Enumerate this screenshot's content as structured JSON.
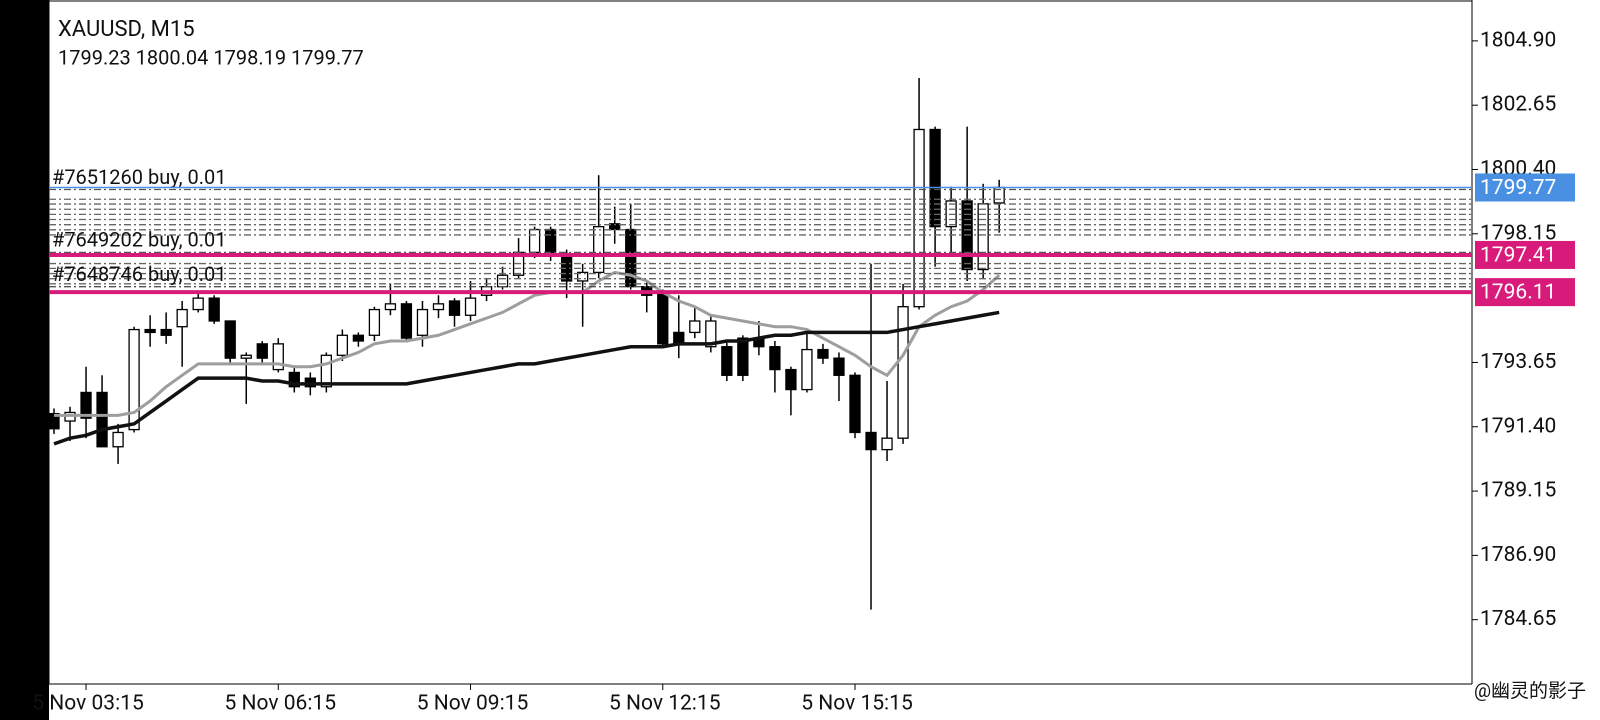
{
  "chart_data": {
    "type": "candlestick",
    "title": "XAUUSD, M15",
    "subtitle": "1799.23 1800.04 1798.19 1799.77",
    "categories": [
      null,
      null,
      "5 Nov 03:15",
      null,
      null,
      null,
      null,
      null,
      null,
      null,
      null,
      null,
      null,
      null,
      "5 Nov 06:15",
      null,
      null,
      null,
      null,
      null,
      null,
      null,
      null,
      null,
      null,
      null,
      "5 Nov 09:15",
      null,
      null,
      null,
      null,
      null,
      null,
      null,
      null,
      null,
      null,
      null,
      "5 Nov 12:15",
      null,
      null,
      null,
      null,
      null,
      null,
      null,
      null,
      null,
      null,
      null,
      "5 Nov 15:15",
      null,
      null,
      null,
      null,
      null,
      null,
      null,
      null,
      null
    ],
    "open": [
      1791.86,
      1791.6,
      1792.6,
      1792.6,
      1790.7,
      1791.3,
      1794.8,
      1794.8,
      1794.9,
      1795.5,
      1795.9,
      1795.1,
      1793.8,
      1794.3,
      1793.4,
      1793.3,
      1793.1,
      1792.8,
      1793.9,
      1794.6,
      1794.6,
      1795.5,
      1795.7,
      1794.6,
      1795.5,
      1795.8,
      1795.3,
      1796.0,
      1796.3,
      1796.7,
      1797.5,
      1798.3,
      1797.4,
      1796.5,
      1796.8,
      1798.5,
      1798.3,
      1796.3,
      1796.1,
      1794.7,
      1794.7,
      1794.2,
      1794.2,
      1794.5,
      1794.5,
      1794.2,
      1793.4,
      1792.7,
      1794.1,
      1793.8,
      1793.2,
      1791.2,
      1790.6,
      1791.0,
      1795.6,
      1801.8,
      1798.4,
      1799.3,
      1796.9,
      1799.23
    ],
    "high": [
      1792.04,
      1792.1,
      1793.5,
      1793.2,
      1791.5,
      1794.9,
      1795.3,
      1795.4,
      1795.8,
      1796.1,
      1796.0,
      1795.1,
      1794.0,
      1794.4,
      1794.5,
      1793.5,
      1793.3,
      1794.0,
      1794.8,
      1794.7,
      1795.6,
      1796.4,
      1795.8,
      1795.8,
      1796.0,
      1795.9,
      1796.5,
      1796.6,
      1797.0,
      1798.0,
      1798.4,
      1798.4,
      1797.6,
      1797.1,
      1800.2,
      1799.1,
      1799.2,
      1796.5,
      1796.2,
      1796.0,
      1795.6,
      1795.3,
      1794.4,
      1794.6,
      1795.1,
      1794.4,
      1793.5,
      1794.7,
      1794.3,
      1794.0,
      1793.3,
      1797.1,
      1793.0,
      1796.4,
      1803.6,
      1801.9,
      1799.8,
      1801.9,
      1799.9,
      1800.04
    ],
    "low": [
      1791.15,
      1790.9,
      1791.0,
      1790.7,
      1790.1,
      1791.2,
      1794.2,
      1794.3,
      1793.5,
      1795.4,
      1795.0,
      1793.6,
      1792.2,
      1793.6,
      1793.3,
      1792.6,
      1792.5,
      1792.6,
      1793.7,
      1794.2,
      1794.4,
      1795.3,
      1794.4,
      1794.2,
      1795.2,
      1794.9,
      1795.1,
      1795.8,
      1796.2,
      1796.6,
      1797.3,
      1797.2,
      1795.9,
      1794.9,
      1796.6,
      1797.8,
      1796.2,
      1795.4,
      1794.2,
      1793.8,
      1794.5,
      1794.0,
      1793.0,
      1793.0,
      1793.9,
      1792.6,
      1791.8,
      1792.6,
      1793.6,
      1792.3,
      1791.0,
      1785.0,
      1790.2,
      1790.8,
      1795.5,
      1797.0,
      1797.4,
      1796.5,
      1796.6,
      1798.19
    ],
    "close": [
      1791.33,
      1791.9,
      1791.7,
      1790.7,
      1791.2,
      1794.8,
      1794.7,
      1794.6,
      1795.5,
      1795.9,
      1795.1,
      1793.8,
      1793.9,
      1793.8,
      1794.3,
      1792.8,
      1792.8,
      1793.9,
      1794.6,
      1794.4,
      1795.5,
      1795.7,
      1794.5,
      1795.5,
      1795.7,
      1795.3,
      1795.9,
      1796.3,
      1796.7,
      1797.5,
      1798.3,
      1797.4,
      1796.5,
      1796.8,
      1798.4,
      1798.3,
      1796.3,
      1796.0,
      1794.3,
      1794.3,
      1795.1,
      1795.1,
      1793.2,
      1793.2,
      1794.2,
      1793.4,
      1792.7,
      1794.1,
      1793.8,
      1793.2,
      1791.2,
      1790.6,
      1791.0,
      1795.6,
      1801.8,
      1798.4,
      1799.3,
      1796.9,
      1799.2,
      1799.77
    ],
    "up_color": "#ffffff",
    "down_color": "#000000",
    "ma_series": [
      {
        "color": "#9e9e9e",
        "values": [
          1791.8,
          1791.8,
          1791.8,
          1791.8,
          1791.8,
          1791.9,
          1792.3,
          1792.8,
          1793.2,
          1793.6,
          1793.6,
          1793.6,
          1793.6,
          1793.6,
          1793.6,
          1793.5,
          1793.5,
          1793.6,
          1793.8,
          1794.0,
          1794.3,
          1794.4,
          1794.4,
          1794.5,
          1794.6,
          1794.8,
          1795.0,
          1795.2,
          1795.4,
          1795.7,
          1796.0,
          1796.1,
          1796.1,
          1796.1,
          1796.5,
          1796.8,
          1796.7,
          1796.5,
          1796.1,
          1795.8,
          1795.6,
          1795.3,
          1795.2,
          1795.1,
          1795.0,
          1794.9,
          1794.9,
          1794.8,
          1794.5,
          1794.2,
          1793.9,
          1793.5,
          1793.2,
          1793.9,
          1794.9,
          1795.3,
          1795.6,
          1795.8,
          1796.2,
          1796.7
        ]
      },
      {
        "color": "#111111",
        "values": [
          1790.8,
          1791.0,
          1791.1,
          1791.3,
          1791.4,
          1791.5,
          1791.9,
          1792.3,
          1792.7,
          1793.1,
          1793.1,
          1793.1,
          1793.1,
          1793.0,
          1793.0,
          1792.9,
          1792.9,
          1792.9,
          1792.9,
          1792.9,
          1792.9,
          1792.9,
          1792.9,
          1793.0,
          1793.1,
          1793.2,
          1793.3,
          1793.4,
          1793.5,
          1793.6,
          1793.6,
          1793.7,
          1793.8,
          1793.9,
          1794.0,
          1794.1,
          1794.2,
          1794.2,
          1794.2,
          1794.3,
          1794.3,
          1794.3,
          1794.4,
          1794.4,
          1794.5,
          1794.6,
          1794.6,
          1794.7,
          1794.7,
          1794.7,
          1794.7,
          1794.7,
          1794.7,
          1794.8,
          1794.9,
          1795.0,
          1795.1,
          1795.2,
          1795.3,
          1795.4
        ]
      }
    ],
    "ylim": [
      1782.4,
      1806.33
    ],
    "yticks": [
      {
        "value": 1804.9,
        "label": "1804.90"
      },
      1802.65,
      {
        "value": 1800.4,
        "label": "1800.40"
      },
      1798.15,
      1793.65,
      {
        "value": 1791.4,
        "label": "1791.40"
      },
      1789.15,
      {
        "value": 1786.9,
        "label": "1786.90"
      },
      1784.65
    ],
    "order_lines": [
      {
        "label": "#7651260 buy, 0.01",
        "price": 1799.7
      },
      {
        "label": "#7649202 buy, 0.01",
        "price": 1797.5
      },
      {
        "label": "#7648746 buy, 0.01",
        "price": 1796.3
      }
    ],
    "other_order_levels": [
      1799.36,
      1799.19,
      1799.01,
      1798.83,
      1798.65,
      1798.47,
      1798.29,
      1798.11,
      1797.11,
      1796.94,
      1796.76,
      1796.58,
      1796.4
    ],
    "price_tags": [
      {
        "value": 1799.77,
        "color": "#4a90e2"
      },
      {
        "value": 1797.41,
        "color": "#d81b7a"
      },
      {
        "value": 1796.11,
        "color": "#d81b7a"
      }
    ],
    "watermark": "@幽灵的影子"
  }
}
